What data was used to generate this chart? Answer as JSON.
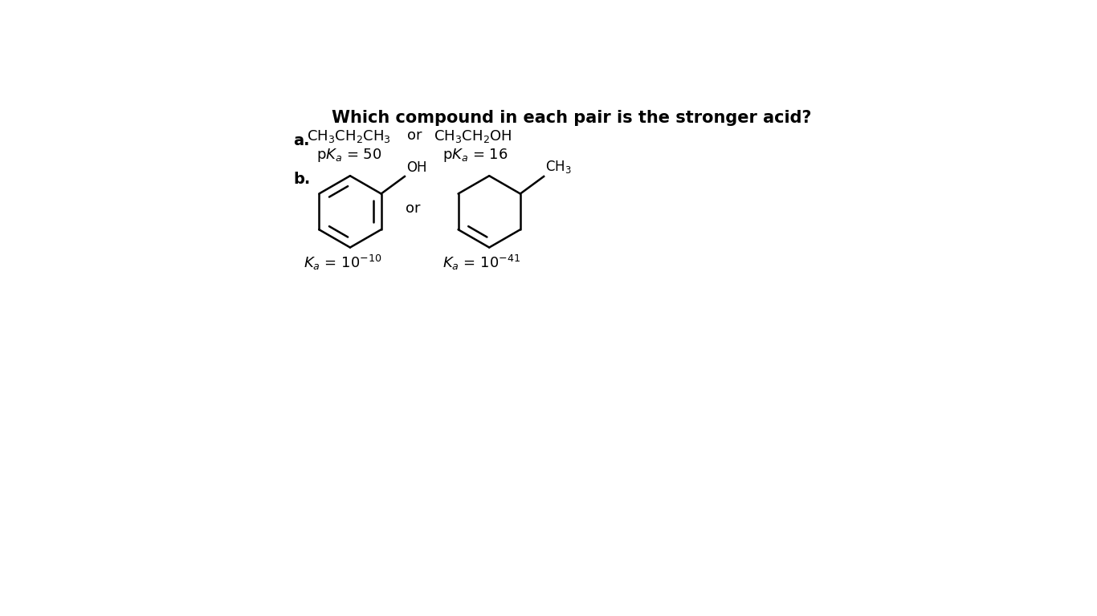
{
  "title": "Which compound in each pair is the stronger acid?",
  "title_fontsize": 15,
  "bg_color": "#ffffff",
  "label_a": "a.",
  "label_b": "b.",
  "part_a": {
    "compound1_formula": "CH$_3$CH$_2$CH$_3$",
    "compound1_pka": "p$K_a$ = 50",
    "compound2_formula": "CH$_3$CH$_2$OH",
    "compound2_pka": "p$K_a$ = 16",
    "or_text": "or"
  },
  "part_b": {
    "compound1_sub": "OH",
    "compound2_sub": "CH$_3$",
    "compound1_ka": "$K_a$ = 10$^{-10}$",
    "compound2_ka": "$K_a$ = 10$^{-41}$",
    "or_text": "or"
  },
  "font_family": "DejaVu Sans",
  "label_fontsize": 14,
  "formula_fontsize": 13,
  "sub_fontsize": 12,
  "ka_fontsize": 13
}
